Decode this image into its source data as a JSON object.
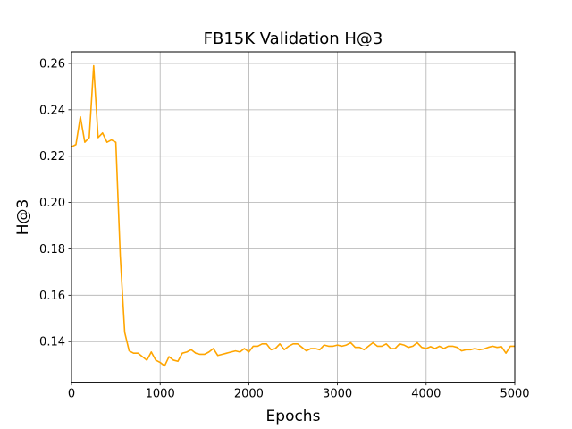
{
  "chart_data": {
    "type": "line",
    "title": "FB15K Validation H@3",
    "xlabel": "Epochs",
    "ylabel": "H@3",
    "xlim": [
      0,
      5000
    ],
    "ylim": [
      0.1225,
      0.265
    ],
    "grid": true,
    "line_color": "#FFA500",
    "grid_color": "#b0b0b0",
    "x_ticks": [
      0,
      1000,
      2000,
      3000,
      4000,
      5000
    ],
    "x_tick_labels": [
      "0",
      "1000",
      "2000",
      "3000",
      "4000",
      "5000"
    ],
    "y_ticks": [
      0.14,
      0.16,
      0.18,
      0.2,
      0.22,
      0.24,
      0.26
    ],
    "y_tick_labels": [
      "0.14",
      "0.16",
      "0.18",
      "0.20",
      "0.22",
      "0.24",
      "0.26"
    ],
    "series": [
      {
        "name": "H@3",
        "x": [
          0,
          50,
          100,
          150,
          200,
          250,
          300,
          350,
          400,
          450,
          500,
          550,
          600,
          650,
          700,
          750,
          800,
          850,
          900,
          950,
          1000,
          1050,
          1100,
          1150,
          1200,
          1250,
          1300,
          1350,
          1400,
          1450,
          1500,
          1550,
          1600,
          1650,
          1700,
          1750,
          1800,
          1850,
          1900,
          1950,
          2000,
          2050,
          2100,
          2150,
          2200,
          2250,
          2300,
          2350,
          2400,
          2450,
          2500,
          2550,
          2600,
          2650,
          2700,
          2750,
          2800,
          2850,
          2900,
          2950,
          3000,
          3050,
          3100,
          3150,
          3200,
          3250,
          3300,
          3350,
          3400,
          3450,
          3500,
          3550,
          3600,
          3650,
          3700,
          3750,
          3800,
          3850,
          3900,
          3950,
          4000,
          4050,
          4100,
          4150,
          4200,
          4250,
          4300,
          4350,
          4400,
          4450,
          4500,
          4550,
          4600,
          4650,
          4700,
          4750,
          4800,
          4850,
          4900,
          4950,
          5000
        ],
        "y": [
          0.224,
          0.225,
          0.237,
          0.226,
          0.228,
          0.259,
          0.228,
          0.23,
          0.226,
          0.227,
          0.226,
          0.177,
          0.144,
          0.136,
          0.135,
          0.135,
          0.1335,
          0.132,
          0.1355,
          0.132,
          0.131,
          0.1295,
          0.1335,
          0.132,
          0.1315,
          0.135,
          0.1355,
          0.1365,
          0.135,
          0.1345,
          0.1345,
          0.1355,
          0.137,
          0.134,
          0.1345,
          0.135,
          0.1355,
          0.136,
          0.1355,
          0.137,
          0.1355,
          0.138,
          0.138,
          0.139,
          0.139,
          0.1365,
          0.137,
          0.139,
          0.1365,
          0.138,
          0.139,
          0.139,
          0.1375,
          0.136,
          0.137,
          0.137,
          0.1365,
          0.1385,
          0.138,
          0.138,
          0.1385,
          0.138,
          0.1385,
          0.1395,
          0.1375,
          0.1375,
          0.1365,
          0.138,
          0.1395,
          0.138,
          0.138,
          0.139,
          0.137,
          0.137,
          0.139,
          0.1385,
          0.1375,
          0.138,
          0.1395,
          0.1375,
          0.137,
          0.1378,
          0.137,
          0.138,
          0.137,
          0.138,
          0.138,
          0.1375,
          0.136,
          0.1365,
          0.1365,
          0.137,
          0.1365,
          0.1368,
          0.1375,
          0.138,
          0.1375,
          0.1378,
          0.135,
          0.138,
          0.138
        ]
      }
    ]
  }
}
